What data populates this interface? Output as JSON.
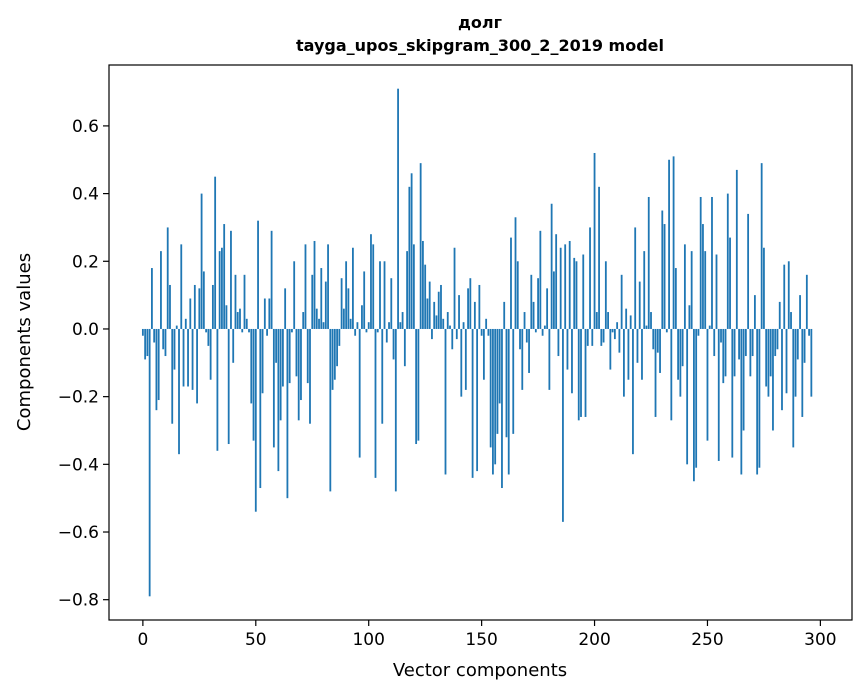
{
  "chart_data": {
    "type": "bar",
    "title": "долг",
    "subtitle": "tayga_upos_skipgram_300_2_2019 model",
    "xlabel": "Vector components",
    "ylabel": "Components values",
    "xlim": [
      -15,
      314
    ],
    "ylim": [
      -0.86,
      0.78
    ],
    "x_ticks": [
      0,
      50,
      100,
      150,
      200,
      250,
      300
    ],
    "x_tick_labels": [
      "0",
      "50",
      "100",
      "150",
      "200",
      "250",
      "300"
    ],
    "y_ticks": [
      -0.8,
      -0.6,
      -0.4,
      -0.2,
      0.0,
      0.2,
      0.4,
      0.6
    ],
    "y_tick_labels": [
      "−0.8",
      "−0.6",
      "−0.4",
      "−0.2",
      "0.0",
      "0.2",
      "0.4",
      "0.6"
    ],
    "grid": false,
    "bar_color": "#1f77b4",
    "values": [
      -0.02,
      -0.09,
      -0.08,
      -0.79,
      0.18,
      -0.04,
      -0.24,
      -0.21,
      0.23,
      -0.06,
      -0.08,
      0.3,
      0.13,
      -0.28,
      -0.12,
      0.01,
      -0.37,
      0.25,
      -0.17,
      0.03,
      -0.17,
      0.09,
      -0.18,
      0.13,
      -0.22,
      0.12,
      0.4,
      0.17,
      -0.01,
      -0.05,
      -0.15,
      0.13,
      0.45,
      -0.36,
      0.23,
      0.24,
      0.31,
      0.07,
      -0.34,
      0.29,
      -0.1,
      0.16,
      0.05,
      0.06,
      -0.01,
      0.16,
      0.03,
      -0.01,
      -0.22,
      -0.33,
      -0.54,
      0.32,
      -0.47,
      -0.19,
      0.09,
      -0.02,
      0.09,
      0.29,
      -0.35,
      -0.1,
      -0.42,
      -0.27,
      -0.17,
      0.12,
      -0.5,
      -0.16,
      -0.01,
      0.2,
      -0.14,
      -0.27,
      -0.21,
      0.05,
      0.25,
      -0.16,
      -0.28,
      0.16,
      0.26,
      0.06,
      0.03,
      0.18,
      0.02,
      0.14,
      0.25,
      -0.48,
      -0.18,
      -0.15,
      -0.11,
      -0.05,
      0.15,
      0.06,
      0.2,
      0.12,
      0.03,
      0.24,
      -0.02,
      0.02,
      -0.38,
      0.07,
      0.17,
      -0.01,
      0.02,
      0.28,
      0.25,
      -0.44,
      -0.01,
      0.2,
      -0.28,
      0.2,
      -0.04,
      0.02,
      0.15,
      -0.09,
      -0.48,
      0.71,
      0.02,
      0.05,
      -0.11,
      0.23,
      0.42,
      0.46,
      0.25,
      -0.34,
      -0.33,
      0.49,
      0.26,
      0.19,
      0.09,
      0.14,
      -0.03,
      0.08,
      0.04,
      0.11,
      0.13,
      0.03,
      -0.43,
      0.05,
      0.01,
      -0.06,
      0.24,
      -0.03,
      0.1,
      -0.2,
      0.02,
      -0.18,
      0.12,
      0.15,
      -0.44,
      0.08,
      -0.42,
      0.13,
      -0.02,
      -0.15,
      0.03,
      -0.02,
      -0.35,
      -0.43,
      -0.4,
      -0.31,
      -0.22,
      -0.47,
      0.08,
      -0.32,
      -0.43,
      0.27,
      -0.31,
      0.33,
      0.2,
      -0.06,
      -0.18,
      0.05,
      -0.04,
      -0.13,
      0.16,
      0.08,
      -0.01,
      0.15,
      0.29,
      -0.02,
      0.01,
      0.12,
      -0.18,
      0.37,
      0.17,
      0.28,
      -0.08,
      0.24,
      -0.57,
      0.25,
      -0.12,
      0.26,
      -0.19,
      0.21,
      0.2,
      -0.27,
      -0.26,
      0.22,
      -0.26,
      -0.05,
      0.3,
      -0.05,
      0.52,
      0.05,
      0.42,
      -0.05,
      -0.04,
      0.2,
      0.05,
      -0.12,
      -0.01,
      -0.03,
      0.02,
      -0.07,
      0.16,
      -0.2,
      0.06,
      -0.15,
      0.04,
      -0.37,
      0.3,
      -0.1,
      0.14,
      -0.15,
      0.23,
      0.01,
      0.39,
      0.05,
      -0.06,
      -0.26,
      -0.07,
      -0.13,
      0.35,
      0.31,
      -0.01,
      0.5,
      -0.27,
      0.51,
      0.18,
      -0.15,
      -0.2,
      -0.11,
      0.25,
      -0.4,
      0.07,
      0.23,
      -0.45,
      -0.41,
      -0.02,
      0.39,
      0.31,
      0.23,
      -0.33,
      0.01,
      0.39,
      -0.08,
      0.22,
      -0.39,
      -0.04,
      -0.16,
      -0.14,
      0.4,
      0.27,
      -0.38,
      -0.14,
      0.47,
      -0.09,
      -0.43,
      -0.3,
      -0.08,
      0.34,
      -0.14,
      -0.08,
      0.1,
      -0.43,
      -0.41,
      0.49,
      0.24,
      -0.17,
      -0.2,
      -0.14,
      -0.3,
      -0.08,
      -0.06,
      0.08,
      -0.24,
      0.19,
      -0.19,
      0.2,
      0.05,
      -0.35,
      -0.2,
      -0.09,
      0.1,
      -0.26,
      -0.1,
      0.16,
      -0.02,
      -0.2
    ]
  }
}
